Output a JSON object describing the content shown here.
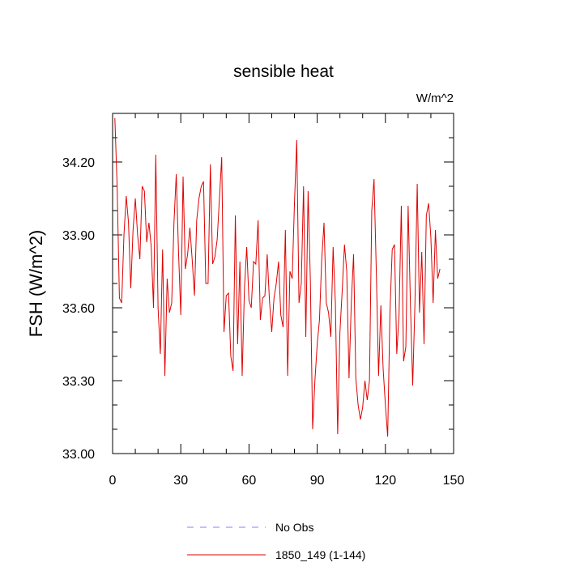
{
  "chart_data": {
    "type": "line",
    "title": "sensible heat",
    "units_label": "W/m^2",
    "ylabel": "FSH  (W/m^2)",
    "xlabel": "",
    "xlim": [
      0,
      150
    ],
    "ylim": [
      33.0,
      34.4
    ],
    "xticks": [
      "0",
      "30",
      "60",
      "90",
      "120",
      "150"
    ],
    "yticks": [
      "33.00",
      "33.30",
      "33.60",
      "33.90",
      "34.20"
    ],
    "grid": false,
    "legend_placement": "bottom-center",
    "legend": [
      {
        "label": "No Obs",
        "color": "#8080ff",
        "style": "dashed"
      },
      {
        "label": "1850_149 (1-144)",
        "color": "#e00000",
        "style": "solid"
      }
    ],
    "series": [
      {
        "name": "1850_149 (1-144)",
        "color": "#e00000",
        "x": [
          1,
          2,
          3,
          4,
          5,
          6,
          7,
          8,
          9,
          10,
          11,
          12,
          13,
          14,
          15,
          16,
          17,
          18,
          19,
          20,
          21,
          22,
          23,
          24,
          25,
          26,
          27,
          28,
          29,
          30,
          31,
          32,
          33,
          34,
          35,
          36,
          37,
          38,
          39,
          40,
          41,
          42,
          43,
          44,
          45,
          46,
          47,
          48,
          49,
          50,
          51,
          52,
          53,
          54,
          55,
          56,
          57,
          58,
          59,
          60,
          61,
          62,
          63,
          64,
          65,
          66,
          67,
          68,
          69,
          70,
          71,
          72,
          73,
          74,
          75,
          76,
          77,
          78,
          79,
          80,
          81,
          82,
          83,
          84,
          85,
          86,
          87,
          88,
          89,
          90,
          91,
          92,
          93,
          94,
          95,
          96,
          97,
          98,
          99,
          100,
          101,
          102,
          103,
          104,
          105,
          106,
          107,
          108,
          109,
          110,
          111,
          112,
          113,
          114,
          115,
          116,
          117,
          118,
          119,
          120,
          121,
          122,
          123,
          124,
          125,
          126,
          127,
          128,
          129,
          130,
          131,
          132,
          133,
          134,
          135,
          136,
          137,
          138,
          139,
          140,
          141,
          142,
          143,
          144
        ],
        "values": [
          34.38,
          34.1,
          33.64,
          33.62,
          33.9,
          34.06,
          33.95,
          33.68,
          33.92,
          34.05,
          33.9,
          33.8,
          34.1,
          34.08,
          33.87,
          33.95,
          33.85,
          33.6,
          34.23,
          33.6,
          33.41,
          33.84,
          33.32,
          33.72,
          33.58,
          33.62,
          33.95,
          34.15,
          33.83,
          33.57,
          34.14,
          33.76,
          33.82,
          33.93,
          33.8,
          33.65,
          33.96,
          34.05,
          34.1,
          34.12,
          33.7,
          33.7,
          34.19,
          33.78,
          33.81,
          33.88,
          34.05,
          34.22,
          33.5,
          33.65,
          33.66,
          33.4,
          33.34,
          33.98,
          33.45,
          33.79,
          33.32,
          33.68,
          33.85,
          33.63,
          33.6,
          33.79,
          33.78,
          33.96,
          33.55,
          33.64,
          33.65,
          33.82,
          33.63,
          33.5,
          33.64,
          33.7,
          33.79,
          33.57,
          33.52,
          33.92,
          33.32,
          33.75,
          33.72,
          34.03,
          34.29,
          33.62,
          33.7,
          34.1,
          33.48,
          34.08,
          33.71,
          33.1,
          33.3,
          33.45,
          33.55,
          33.8,
          33.95,
          33.62,
          33.58,
          33.48,
          33.85,
          33.62,
          33.08,
          33.5,
          33.67,
          33.86,
          33.75,
          33.31,
          33.62,
          33.82,
          33.31,
          33.2,
          33.14,
          33.19,
          33.3,
          33.22,
          33.3,
          34.0,
          34.13,
          33.75,
          33.32,
          33.61,
          33.35,
          33.2,
          33.07,
          33.58,
          33.84,
          33.86,
          33.41,
          33.57,
          34.02,
          33.38,
          33.44,
          34.02,
          33.62,
          33.28,
          33.62,
          34.11,
          33.58,
          33.83,
          33.45,
          33.98,
          34.03,
          33.89,
          33.62,
          33.92,
          33.72,
          33.76
        ]
      }
    ]
  }
}
